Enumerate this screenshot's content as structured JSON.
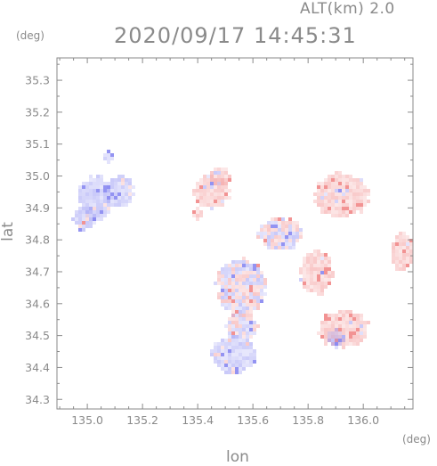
{
  "chart_data": {
    "type": "heatmap",
    "title": "2020/09/17 14:45:31",
    "subtitle": "ALT(km) 2.0",
    "xlabel": "lon",
    "ylabel": "lat",
    "x_unit": "(deg)",
    "y_unit": "(deg)",
    "xlim": [
      134.89,
      136.18
    ],
    "ylim": [
      34.27,
      35.37
    ],
    "x_ticks": [
      135.0,
      135.2,
      135.4,
      135.6,
      135.8,
      136.0
    ],
    "x_tick_labels": [
      "135.0",
      "135.2",
      "135.4",
      "135.6",
      "135.8",
      "136.0"
    ],
    "y_ticks": [
      34.3,
      34.4,
      34.5,
      34.6,
      34.7,
      34.8,
      34.9,
      35.0,
      35.1,
      35.2,
      35.3
    ],
    "y_tick_labels": [
      "34.3",
      "34.4",
      "34.5",
      "34.6",
      "34.7",
      "34.8",
      "34.9",
      "35.0",
      "35.1",
      "35.2",
      "35.3"
    ],
    "grid": false,
    "colors": {
      "positive": "#f08080",
      "negative": "#8080f0",
      "text": "#8a8a8a",
      "axis": "#8a8a8a"
    },
    "regions": [
      {
        "lon": 135.03,
        "lat": 34.93,
        "rx": 0.06,
        "ry": 0.07,
        "sign": -1
      },
      {
        "lon": 134.99,
        "lat": 34.87,
        "rx": 0.04,
        "ry": 0.04,
        "sign": -1
      },
      {
        "lon": 135.12,
        "lat": 34.95,
        "rx": 0.05,
        "ry": 0.05,
        "sign": -1
      },
      {
        "lon": 135.08,
        "lat": 35.06,
        "rx": 0.02,
        "ry": 0.02,
        "sign": -1
      },
      {
        "lon": 135.45,
        "lat": 34.95,
        "rx": 0.07,
        "ry": 0.05,
        "sign": 1
      },
      {
        "lon": 135.48,
        "lat": 35.0,
        "rx": 0.04,
        "ry": 0.03,
        "sign": 1
      },
      {
        "lon": 135.92,
        "lat": 34.94,
        "rx": 0.1,
        "ry": 0.07,
        "sign": 1
      },
      {
        "lon": 135.83,
        "lat": 34.7,
        "rx": 0.06,
        "ry": 0.07,
        "sign": 1
      },
      {
        "lon": 135.93,
        "lat": 34.52,
        "rx": 0.09,
        "ry": 0.06,
        "sign": 1
      },
      {
        "lon": 136.14,
        "lat": 34.76,
        "rx": 0.04,
        "ry": 0.06,
        "sign": 1
      },
      {
        "lon": 135.7,
        "lat": 34.82,
        "rx": 0.08,
        "ry": 0.05,
        "sign": 0
      },
      {
        "lon": 135.56,
        "lat": 34.65,
        "rx": 0.09,
        "ry": 0.09,
        "sign": 0
      },
      {
        "lon": 135.53,
        "lat": 34.44,
        "rx": 0.08,
        "ry": 0.06,
        "sign": -1
      },
      {
        "lon": 135.56,
        "lat": 34.53,
        "rx": 0.06,
        "ry": 0.04,
        "sign": 0
      },
      {
        "lon": 135.4,
        "lat": 34.88,
        "rx": 0.02,
        "ry": 0.02,
        "sign": 1
      },
      {
        "lon": 135.9,
        "lat": 34.49,
        "rx": 0.03,
        "ry": 0.03,
        "sign": -1
      }
    ]
  }
}
